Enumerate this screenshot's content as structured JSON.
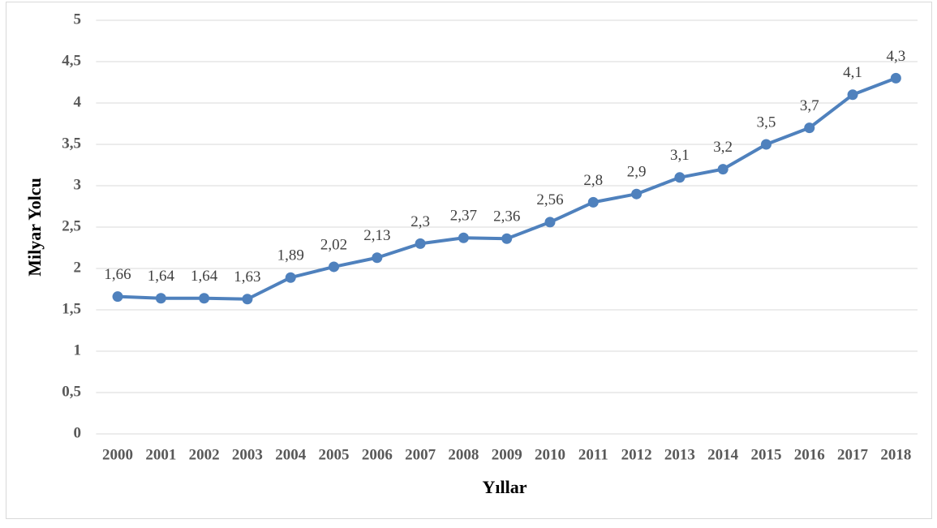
{
  "chart_data": {
    "type": "line",
    "x_label": "Yıllar",
    "y_label": "Milyar Yolcu",
    "categories": [
      "2000",
      "2001",
      "2002",
      "2003",
      "2004",
      "2005",
      "2006",
      "2007",
      "2008",
      "2009",
      "2010",
      "2011",
      "2012",
      "2013",
      "2014",
      "2015",
      "2016",
      "2017",
      "2018"
    ],
    "values": [
      1.66,
      1.64,
      1.64,
      1.63,
      1.89,
      2.02,
      2.13,
      2.3,
      2.37,
      2.36,
      2.56,
      2.8,
      2.9,
      3.1,
      3.2,
      3.5,
      3.7,
      4.1,
      4.3
    ],
    "value_labels": [
      "1,66",
      "1,64",
      "1,64",
      "1,63",
      "1,89",
      "2,02",
      "2,13",
      "2,3",
      "2,37",
      "2,36",
      "2,56",
      "2,8",
      "2,9",
      "3,1",
      "3,2",
      "3,5",
      "3,7",
      "4,1",
      "4,3"
    ],
    "color": "#4f81bd",
    "ylim": [
      0,
      5
    ],
    "yticks": [
      0,
      {
        "value": 0.5,
        "label": "0,5"
      },
      1,
      {
        "value": 1.5,
        "label": "1,5"
      },
      2,
      {
        "value": 2.5,
        "label": "2,5"
      },
      3,
      {
        "value": 3.5,
        "label": "3,5"
      },
      4,
      {
        "value": 4.5,
        "label": "4,5"
      },
      5
    ],
    "grid": true
  }
}
